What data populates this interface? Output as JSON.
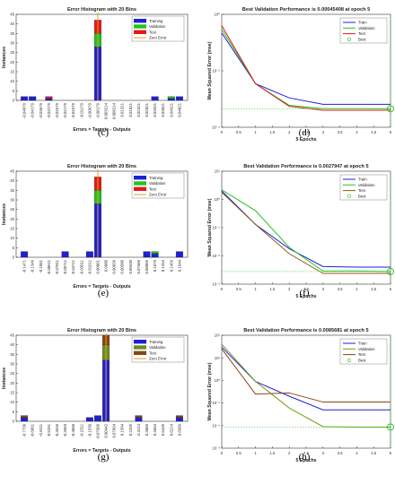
{
  "chart_data": [
    {
      "id": "c",
      "panel": "(c)",
      "type": "bar",
      "title": "Error Histogram with 20 Bins",
      "xlabel": "Errors = Targets - Outputs",
      "ylabel": "Instances",
      "ylim": [
        0,
        45
      ],
      "yticks": [
        0,
        5,
        10,
        15,
        20,
        25,
        30,
        35,
        40,
        45
      ],
      "categories": [
        "-0.04679",
        "-0.04179",
        "-0.03679",
        "-0.03179",
        "-0.02679",
        "-0.02179",
        "-0.01679",
        "-0.01179",
        "-0.00679",
        "-0.00179",
        "0.003214",
        "0.008214",
        "0.01321",
        "0.01821",
        "0.02321",
        "0.02821",
        "0.03321",
        "0.03821",
        "0.04321",
        "0.04821"
      ],
      "zero_index": 9,
      "series": [
        {
          "name": "Training",
          "color": "#1f1fd6",
          "values": [
            2,
            2,
            0,
            1,
            0,
            0,
            0,
            0,
            0,
            28,
            0,
            0,
            0,
            0,
            0,
            0,
            2,
            0,
            1,
            2
          ]
        },
        {
          "name": "Validation",
          "color": "#22c322",
          "values": [
            0,
            0,
            0,
            0,
            0,
            0,
            0,
            0,
            0,
            7,
            0,
            0,
            0,
            0,
            0,
            0,
            0,
            0,
            1,
            0
          ]
        },
        {
          "name": "Test",
          "color": "#e31a1a",
          "values": [
            0,
            0,
            0,
            1,
            0,
            0,
            0,
            0,
            0,
            7,
            0,
            0,
            0,
            0,
            0,
            0,
            0,
            0,
            0,
            0
          ]
        }
      ],
      "legend": [
        "Training",
        "Validation",
        "Test",
        "Zero Error"
      ],
      "zero_error_color": "#e0a020"
    },
    {
      "id": "d",
      "panel": "(d)",
      "type": "line",
      "title": "Best Validation Performance is 0.00045408 at epoch 5",
      "xlabel": "5 Epochs",
      "ylabel": "Mean Squared Error  (mse)",
      "log": true,
      "ylim_exp": [
        -4,
        0
      ],
      "yticks": [
        "10⁻⁴",
        "10⁻²",
        "10⁰"
      ],
      "x": [
        0,
        1,
        2,
        3,
        4,
        5
      ],
      "xlim": [
        0,
        5
      ],
      "series": [
        {
          "name": "Train",
          "color": "#1f1fd6",
          "values": [
            0.22,
            0.0035,
            0.0011,
            0.00065,
            0.00065,
            0.00065
          ]
        },
        {
          "name": "Validation",
          "color": "#22c322",
          "values": [
            0.3,
            0.0035,
            0.0006,
            0.00046,
            0.00046,
            0.000454
          ]
        },
        {
          "name": "Test",
          "color": "#e31a1a",
          "values": [
            0.4,
            0.0035,
            0.00055,
            0.0004,
            0.0004,
            0.0004
          ]
        }
      ],
      "best": {
        "x": 5,
        "y": 0.000454,
        "label": "Best"
      },
      "legend": [
        "Train",
        "Validation",
        "Test",
        "Best"
      ]
    },
    {
      "id": "e",
      "panel": "(e)",
      "type": "bar",
      "title": "Error Histogram with 20 Bins",
      "xlabel": "Errors = Targets - Outputs",
      "ylabel": "Instances",
      "ylim": [
        0,
        45
      ],
      "yticks": [
        0,
        5,
        10,
        15,
        20,
        25,
        30,
        35,
        40,
        45
      ],
      "categories": [
        "-0.1471",
        "-0.1349",
        "-0.1081",
        "-0.08911",
        "-0.07811",
        "-0.05711",
        "-0.04711",
        "-0.03011",
        "-0.01911",
        "0.00001",
        "0.0080",
        "0.00039",
        "0.00580",
        "0.05630",
        "0.07689",
        "0.08869",
        "0.1079",
        "0.1254",
        "0.1459",
        "0.1644"
      ],
      "zero_index": 9,
      "series": [
        {
          "name": "Training",
          "color": "#1f1fd6",
          "values": [
            3,
            0,
            0,
            0,
            0,
            3,
            0,
            0,
            3,
            28,
            0,
            0,
            0,
            0,
            0,
            3,
            2,
            0,
            0,
            3
          ]
        },
        {
          "name": "Validation",
          "color": "#22c322",
          "values": [
            0,
            0,
            0,
            0,
            0,
            0,
            0,
            0,
            0,
            7,
            0,
            0,
            0,
            0,
            0,
            0,
            1,
            0,
            0,
            0
          ]
        },
        {
          "name": "Test",
          "color": "#e31a1a",
          "values": [
            0,
            0,
            0,
            0,
            0,
            0,
            0,
            0,
            0,
            7,
            0,
            0,
            0,
            0,
            0,
            0,
            0,
            0,
            0,
            0
          ]
        }
      ],
      "legend": [
        "Training",
        "Validation",
        "Test",
        "Zero Error"
      ],
      "zero_error_color": "#e0a020"
    },
    {
      "id": "f",
      "panel": "(f)",
      "type": "line",
      "title": "Best Validation Performance is 0.0027947 at epoch 5",
      "xlabel": "5 Epochs",
      "ylabel": "Mean Squared Error  (mse)",
      "log": true,
      "ylim_exp": [
        -3,
        1
      ],
      "yticks": [
        "10⁻³",
        "10⁻²",
        "10⁻¹",
        "10⁰",
        "10¹"
      ],
      "x": [
        0,
        1,
        2,
        3,
        4,
        5
      ],
      "xlim": [
        0,
        5
      ],
      "series": [
        {
          "name": "Train",
          "color": "#1f1fd6",
          "values": [
            2.0,
            0.13,
            0.018,
            0.0042,
            0.004,
            0.004
          ]
        },
        {
          "name": "Validation",
          "color": "#22c322",
          "values": [
            2.2,
            0.4,
            0.02,
            0.0029,
            0.0029,
            0.0028
          ]
        },
        {
          "name": "Test",
          "color": "#8b5a14",
          "values": [
            1.8,
            0.13,
            0.012,
            0.0024,
            0.0024,
            0.0024
          ]
        }
      ],
      "best": {
        "x": 5,
        "y": 0.0028,
        "label": "Best"
      },
      "legend": [
        "Train",
        "Validation",
        "Test",
        "Best"
      ]
    },
    {
      "id": "g",
      "panel": "(g)",
      "type": "bar",
      "title": "Error Histogram with 20 Bins",
      "xlabel": "Errors = Targets - Outputs",
      "ylabel": "Instances",
      "ylim": [
        0,
        45
      ],
      "yticks": [
        0,
        5,
        10,
        15,
        20,
        25,
        30,
        35,
        40,
        45
      ],
      "categories": [
        "-0.7736",
        "-0.6861",
        "-0.6111",
        "-0.5261",
        "-0.4539",
        "-0.3903",
        "-0.3066",
        "-0.2311",
        "-0.1536",
        "-0.07606",
        "0.00442",
        "0.07894",
        "0.1564",
        "0.2339",
        "0.3114",
        "0.3889",
        "0.4664",
        "0.5439",
        "0.6214",
        "0.6989"
      ],
      "zero_index": 10,
      "series": [
        {
          "name": "Training",
          "color": "#1f1fd6",
          "values": [
            2,
            0,
            0,
            0,
            0,
            0,
            0,
            0,
            2,
            3,
            32,
            0,
            0,
            0,
            2,
            0,
            0,
            0,
            0,
            2
          ]
        },
        {
          "name": "Validation",
          "color": "#6b8e23",
          "values": [
            0,
            0,
            0,
            0,
            0,
            0,
            0,
            0,
            0,
            0,
            8,
            0,
            0,
            0,
            0,
            0,
            0,
            0,
            0,
            0
          ]
        },
        {
          "name": "Test",
          "color": "#8b4513",
          "values": [
            1,
            0,
            0,
            0,
            0,
            0,
            0,
            0,
            0,
            0,
            5,
            0,
            0,
            0,
            1,
            0,
            0,
            0,
            0,
            1
          ]
        }
      ],
      "legend": [
        "Training",
        "Validation",
        "Test",
        "Zero Error"
      ],
      "zero_error_color": "#e0a020"
    },
    {
      "id": "h",
      "panel": "(h)",
      "type": "line",
      "title": "Best Validation Performance is 0.0085681 at epoch 5",
      "xlabel": "5 Epochs",
      "ylabel": "Mean Squared Error  (mse)",
      "log": true,
      "ylim_exp": [
        -3,
        2
      ],
      "yticks": [
        "10⁻³",
        "10⁻²",
        "10⁻¹",
        "10⁰",
        "10¹",
        "10²"
      ],
      "x": [
        0,
        1,
        2,
        3,
        4,
        5
      ],
      "xlim": [
        0,
        5
      ],
      "series": [
        {
          "name": "Train",
          "color": "#1f1fd6",
          "values": [
            30,
            0.9,
            0.2,
            0.05,
            0.05,
            0.05
          ]
        },
        {
          "name": "Validation",
          "color": "#6aa012",
          "values": [
            40,
            0.9,
            0.06,
            0.009,
            0.0086,
            0.0086
          ]
        },
        {
          "name": "Test",
          "color": "#8b4513",
          "values": [
            25,
            0.25,
            0.28,
            0.11,
            0.11,
            0.11
          ]
        }
      ],
      "best": {
        "x": 5,
        "y": 0.0086,
        "label": "Best"
      },
      "legend": [
        "Train",
        "Validation",
        "Test",
        "Best"
      ]
    }
  ]
}
